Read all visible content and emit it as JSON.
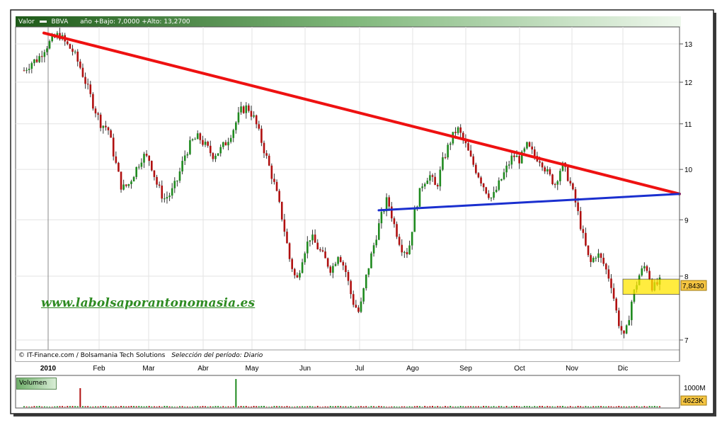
{
  "header": {
    "label": "Valor",
    "ticker": "BBVA",
    "range_text": "año +Bajo: 7,0000 +Alto: 13,2700"
  },
  "watermark": "www.labolsaporantonomasia.es",
  "footer": {
    "credits": "© IT-Finance.com / Bolsamania Tech Solutions",
    "period": "Selección del período: Diario"
  },
  "volume_panel": {
    "label": "Volumen",
    "scale_label": "1000M",
    "current_label": "4623K"
  },
  "chart_data": {
    "type": "candlestick",
    "x_labels": [
      "2010",
      "Feb",
      "Mar",
      "Abr",
      "May",
      "Jun",
      "Jul",
      "Ago",
      "Sep",
      "Oct",
      "Nov",
      "Dic"
    ],
    "y_ticks": [
      7,
      8,
      9,
      10,
      11,
      12,
      13
    ],
    "y_axis_scale": "log",
    "ylim": [
      6.8,
      13.6
    ],
    "current_price": 7.843,
    "current_price_label": "7,8430",
    "period_low": 7.0,
    "period_high": 13.27,
    "series_colors": {
      "up": "#1f8a1f",
      "down": "#b01010"
    },
    "approx_daily_closes": [
      12.3,
      12.5,
      12.6,
      12.9,
      13.1,
      13.27,
      13.0,
      12.8,
      12.4,
      11.9,
      11.4,
      11.0,
      10.9,
      10.2,
      9.6,
      9.7,
      10.0,
      10.3,
      10.2,
      9.7,
      9.4,
      9.5,
      9.8,
      10.3,
      10.6,
      10.7,
      10.5,
      10.3,
      10.4,
      10.6,
      10.9,
      11.3,
      11.4,
      11.1,
      10.6,
      10.1,
      9.6,
      9.0,
      8.3,
      7.9,
      8.4,
      8.7,
      8.5,
      8.3,
      8.1,
      8.4,
      8.1,
      7.6,
      7.4,
      8.0,
      8.5,
      9.0,
      9.4,
      8.9,
      8.5,
      8.4,
      9.2,
      9.7,
      9.9,
      9.6,
      10.2,
      10.6,
      10.9,
      10.6,
      10.2,
      9.9,
      9.6,
      9.4,
      9.7,
      10.0,
      10.3,
      10.2,
      10.5,
      10.3,
      10.2,
      9.9,
      9.7,
      10.1,
      9.8,
      9.3,
      8.7,
      8.2,
      8.4,
      8.2,
      7.9,
      7.3,
      7.0,
      7.6,
      8.0,
      8.2,
      7.8,
      7.9
    ],
    "volume_spikes": [
      {
        "x": "Ene",
        "approx": "880M"
      },
      {
        "x": "May",
        "approx": "1300M"
      }
    ],
    "trendlines": [
      {
        "color": "#ee1111",
        "from": {
          "x": "2010",
          "y": 13.3
        },
        "to": {
          "x": "Dic",
          "y": 9.5
        }
      },
      {
        "color": "#1a2fcf",
        "from": {
          "x": "Jul",
          "y": 9.18
        },
        "to": {
          "x": "Dic",
          "y": 9.5
        }
      }
    ],
    "support_band": {
      "low": 7.7,
      "high": 7.95,
      "color": "#ffe600"
    }
  }
}
